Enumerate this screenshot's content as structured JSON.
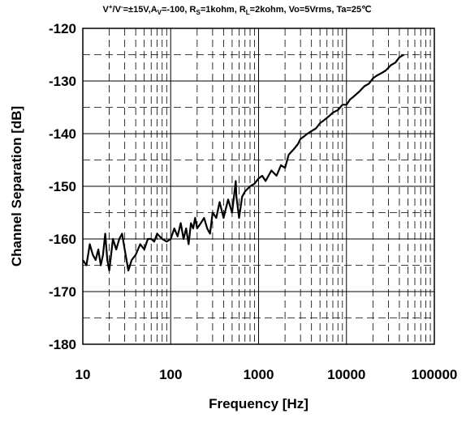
{
  "chart_data": {
    "type": "line",
    "title_parts": {
      "t1": "V",
      "t2": "+",
      "t3": "/V",
      "t4": "-",
      "t5": "=±15V,A",
      "t6": "V",
      "t7": "=-100, R",
      "t8": "S",
      "t9": "=1kohm, R",
      "t10": "L",
      "t11": "=2kohm, Vo=5Vrms, Ta=25℃"
    },
    "xlabel": "Frequency [Hz]",
    "ylabel": "Channel Separation [dB]",
    "x_scale": "log",
    "xlim": [
      10,
      100000
    ],
    "ylim": [
      -180,
      -120
    ],
    "x_ticks": [
      10,
      100,
      1000,
      10000,
      100000
    ],
    "x_tick_labels": [
      "10",
      "100",
      "1000",
      "10000",
      "100000"
    ],
    "y_ticks": [
      -120,
      -130,
      -140,
      -150,
      -160,
      -170,
      -180
    ],
    "y_tick_labels": [
      "-120",
      "-130",
      "-140",
      "-150",
      "-160",
      "-170",
      "-180"
    ],
    "grid": true,
    "legend": "none",
    "line_color": "#000000",
    "series": [
      {
        "x": [
          10,
          11,
          12,
          13,
          14,
          15,
          16,
          17,
          18,
          19,
          20,
          22,
          24,
          26,
          28,
          30,
          33,
          36,
          40,
          45,
          50,
          55,
          60,
          65,
          70,
          80,
          90,
          100,
          110,
          120,
          130,
          140,
          150,
          160,
          170,
          180,
          190,
          200,
          220,
          240,
          260,
          280,
          300,
          330,
          360,
          400,
          450,
          500,
          550,
          560,
          580,
          600,
          650,
          700,
          800,
          900,
          1000,
          1100,
          1200,
          1400,
          1600,
          1800,
          2000,
          2200,
          2500,
          2800,
          3000,
          3300,
          3600,
          4000,
          4500,
          5000,
          5500,
          6000,
          6500,
          7000,
          8000,
          9000,
          10000,
          11000,
          12000,
          14000,
          16000,
          18000,
          20000,
          22000,
          25000,
          28000,
          32000,
          36000,
          40000,
          45000
        ],
        "y": [
          -164,
          -165,
          -161,
          -163,
          -164,
          -162,
          -165,
          -163,
          -159,
          -164,
          -166,
          -160,
          -162,
          -160,
          -159,
          -162,
          -166,
          -164,
          -163,
          -161,
          -162,
          -160,
          -160,
          -160.5,
          -159,
          -160,
          -160.5,
          -160,
          -158,
          -159.5,
          -157,
          -160,
          -158,
          -161,
          -157,
          -158,
          -156,
          -158,
          -157,
          -156,
          -158,
          -159,
          -155,
          -156,
          -153,
          -156,
          -152.5,
          -155,
          -149,
          -152,
          -154,
          -156,
          -152,
          -151,
          -150,
          -149.5,
          -148.5,
          -148,
          -149,
          -147,
          -148,
          -146,
          -146.5,
          -144,
          -143,
          -142,
          -141,
          -140.5,
          -140,
          -139.5,
          -139,
          -138,
          -137.5,
          -137,
          -136.5,
          -136,
          -135.5,
          -134.5,
          -134.5,
          -133.5,
          -133,
          -132,
          -131,
          -130.5,
          -129.5,
          -129,
          -128.5,
          -128,
          -127,
          -126.5,
          -125.5,
          -125
        ]
      }
    ]
  }
}
